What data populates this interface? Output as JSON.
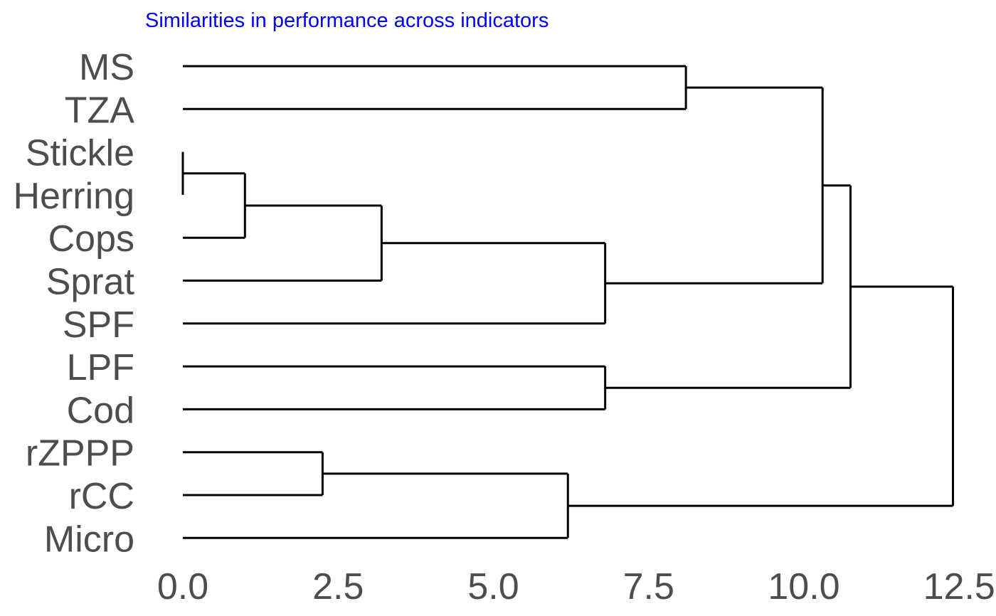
{
  "chart_data": {
    "type": "dendrogram",
    "title": "Similarities in performance across indicators",
    "title_color": "#0000ff",
    "line_color": "#000000",
    "label_color": "#4d4d4d",
    "orientation": "horizontal",
    "xlim": [
      0,
      12.9
    ],
    "ticks": [
      0.0,
      2.5,
      5.0,
      7.5,
      10.0,
      12.5
    ],
    "tick_labels": [
      "0.0",
      "2.5",
      "5.0",
      "7.5",
      "10.0",
      "12.5"
    ],
    "leaves": [
      "MS",
      "TZA",
      "Stickle",
      "Herring",
      "Cops",
      "Sprat",
      "SPF",
      "LPF",
      "Cod",
      "rZPPP",
      "rCC",
      "Micro"
    ],
    "merges": [
      {
        "id": "C1",
        "children": [
          "Stickle",
          "Herring"
        ],
        "height": 0.0
      },
      {
        "id": "C2",
        "children": [
          "C1",
          "Cops"
        ],
        "height": 1.0
      },
      {
        "id": "C3",
        "children": [
          "C2",
          "Sprat"
        ],
        "height": 3.2
      },
      {
        "id": "C4",
        "children": [
          "C3",
          "SPF"
        ],
        "height": 6.8
      },
      {
        "id": "C5",
        "children": [
          "LPF",
          "Cod"
        ],
        "height": 6.8
      },
      {
        "id": "C6",
        "children": [
          "MS",
          "TZA"
        ],
        "height": 8.1
      },
      {
        "id": "C7",
        "children": [
          "C6",
          "C4"
        ],
        "height": 10.3
      },
      {
        "id": "C8",
        "children": [
          "C7",
          "C5"
        ],
        "height": 10.75
      },
      {
        "id": "C9",
        "children": [
          "rZPPP",
          "rCC"
        ],
        "height": 2.25
      },
      {
        "id": "C10",
        "children": [
          "C9",
          "Micro"
        ],
        "height": 6.2
      },
      {
        "id": "C11",
        "children": [
          "C8",
          "C10"
        ],
        "height": 12.4
      }
    ]
  }
}
